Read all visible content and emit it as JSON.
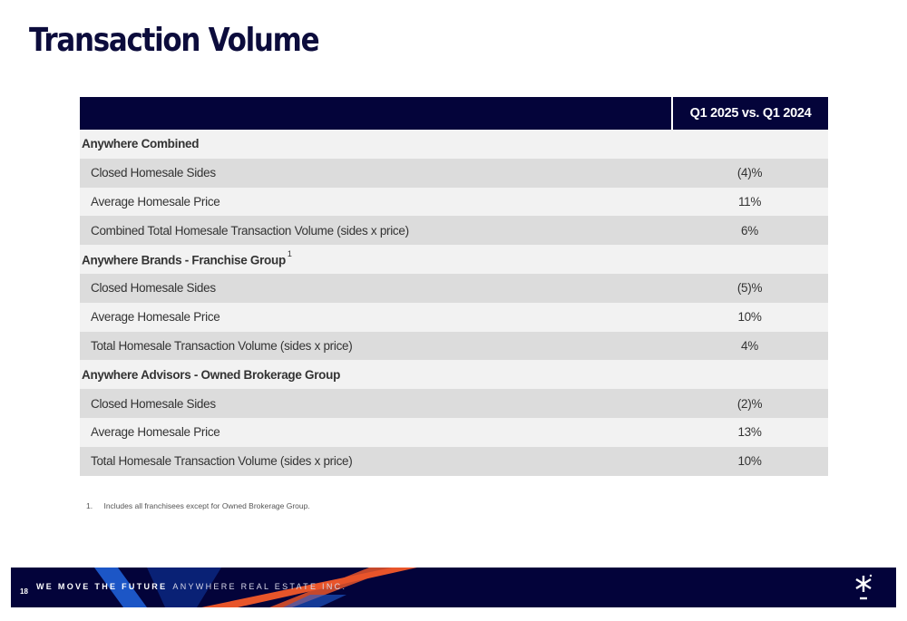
{
  "page": {
    "title": "Transaction Volume",
    "page_number": "18"
  },
  "table": {
    "column_header": "Q1 2025 vs. Q1 2024",
    "rows": [
      {
        "label": "Anywhere Combined",
        "value": "",
        "sup": ""
      },
      {
        "label": "Closed Homesale Sides",
        "value": "(4)%"
      },
      {
        "label": "Average Homesale Price",
        "value": "11%"
      },
      {
        "label": "Combined Total Homesale Transaction Volume (sides x price)",
        "value": "6%"
      },
      {
        "label": "Anywhere Brands - Franchise Group",
        "value": "",
        "sup": "1"
      },
      {
        "label": "Closed Homesale Sides",
        "value": "(5)%"
      },
      {
        "label": "Average Homesale Price",
        "value": "10%"
      },
      {
        "label": "Total Homesale Transaction Volume (sides x price)",
        "value": "4%"
      },
      {
        "label": "Anywhere Advisors - Owned Brokerage Group",
        "value": ""
      },
      {
        "label": "Closed Homesale Sides",
        "value": "(2)%"
      },
      {
        "label": "Average Homesale Price",
        "value": "13%"
      },
      {
        "label": "Total Homesale Transaction Volume (sides x price)",
        "value": "10%"
      }
    ]
  },
  "footnote": {
    "number": "1.",
    "text": "Includes all franchisees except for Owned Brokerage Group."
  },
  "footer": {
    "tagline_bold": "WE MOVE THE FUTURE",
    "tagline_company": "ANYWHERE REAL ESTATE INC.",
    "logo_icon": "asterisk-logo-icon",
    "colors": {
      "navy": "#03033a",
      "blue": "#1f5fd6",
      "orange": "#e8552a"
    }
  }
}
